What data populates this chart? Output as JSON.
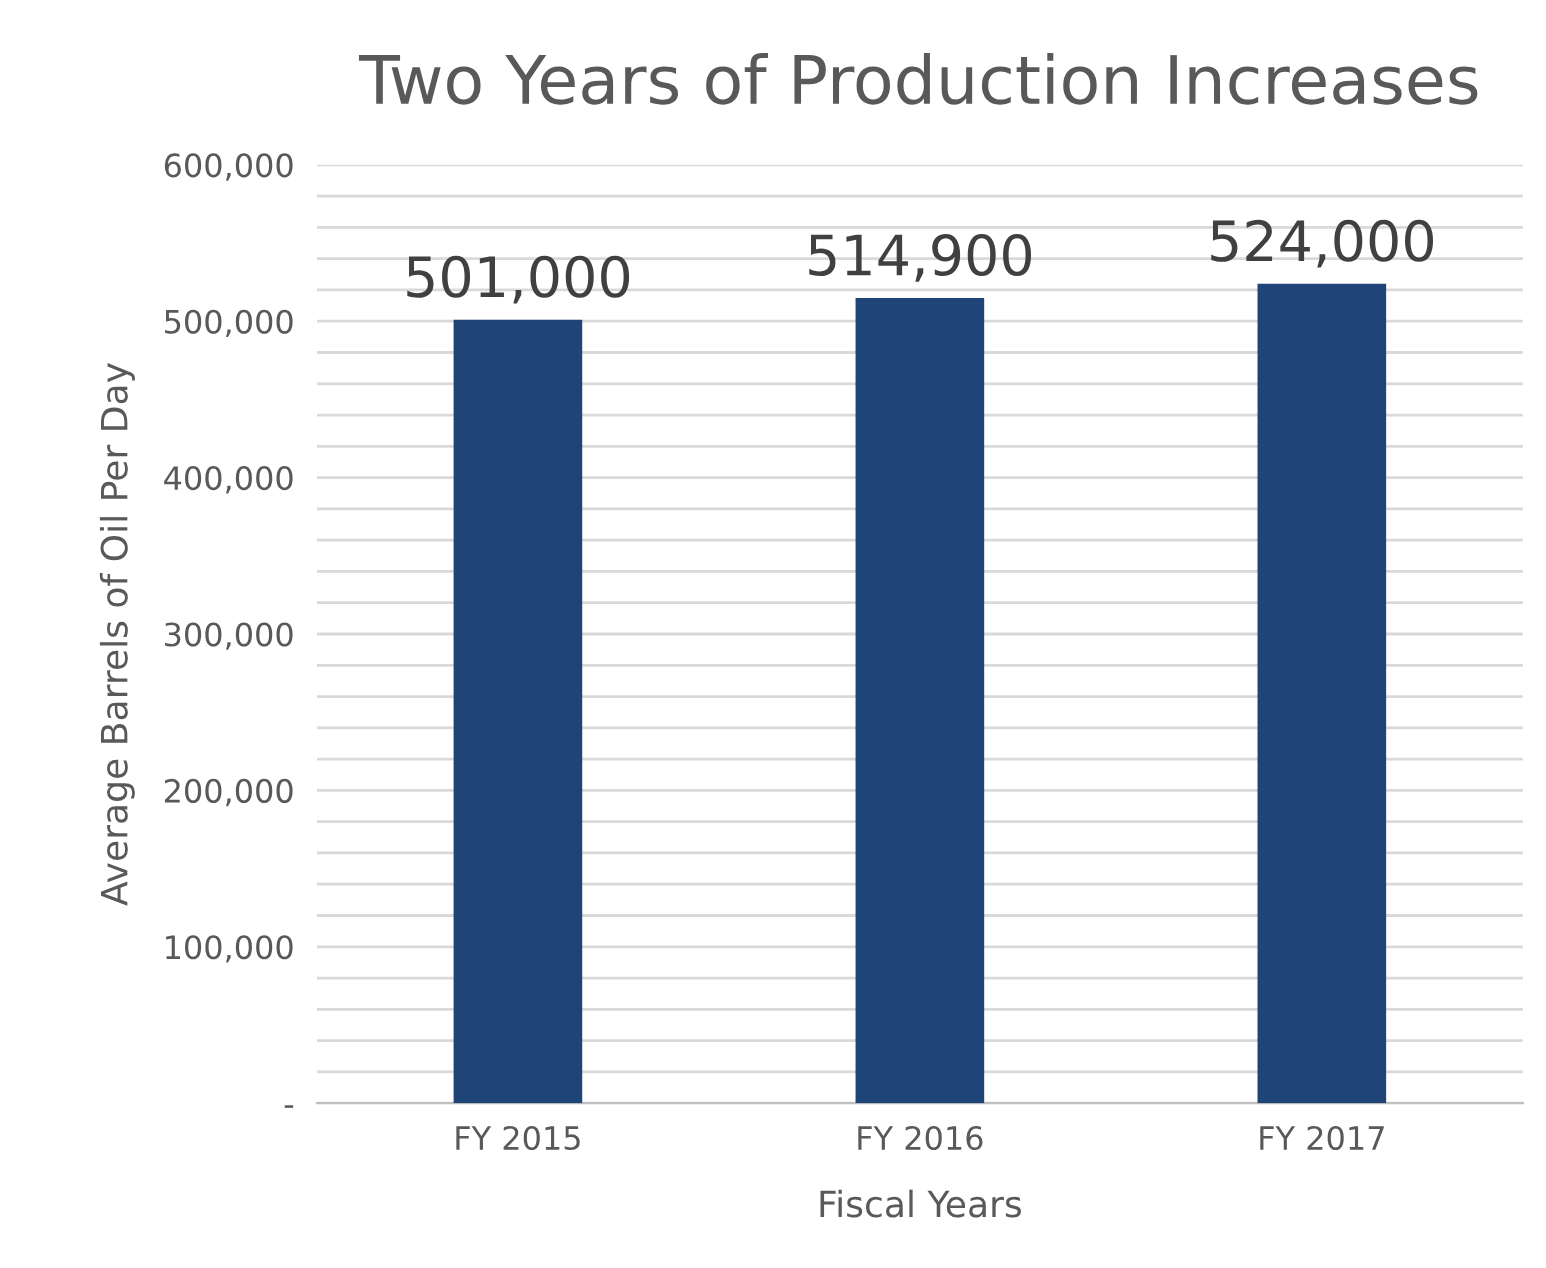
{
  "chart_data": {
    "type": "bar",
    "title": "Two Years of Production Increases",
    "xlabel": "Fiscal Years",
    "ylabel": "Average Barrels of Oil Per Day",
    "categories": [
      "FY 2015",
      "FY 2016",
      "FY 2017"
    ],
    "values": [
      501000,
      514900,
      524000
    ],
    "value_labels": [
      "501,000",
      "514,900",
      "524,000"
    ],
    "color": "#1f4478",
    "ylim": [
      0,
      600000
    ],
    "yticks": [
      {
        "value": 0,
        "label": "-"
      },
      {
        "value": 20000,
        "label": null
      },
      {
        "value": 40000,
        "label": null
      },
      {
        "value": 60000,
        "label": null
      },
      {
        "value": 80000,
        "label": null
      },
      {
        "value": 100000,
        "label": "100,000"
      },
      {
        "value": 120000,
        "label": null
      },
      {
        "value": 140000,
        "label": null
      },
      {
        "value": 160000,
        "label": null
      },
      {
        "value": 180000,
        "label": null
      },
      {
        "value": 200000,
        "label": "200,000"
      },
      {
        "value": 220000,
        "label": null
      },
      {
        "value": 240000,
        "label": null
      },
      {
        "value": 260000,
        "label": null
      },
      {
        "value": 280000,
        "label": null
      },
      {
        "value": 300000,
        "label": "300,000"
      },
      {
        "value": 320000,
        "label": null
      },
      {
        "value": 340000,
        "label": null
      },
      {
        "value": 360000,
        "label": null
      },
      {
        "value": 380000,
        "label": null
      },
      {
        "value": 400000,
        "label": "400,000"
      },
      {
        "value": 420000,
        "label": null
      },
      {
        "value": 440000,
        "label": null
      },
      {
        "value": 460000,
        "label": null
      },
      {
        "value": 480000,
        "label": null
      },
      {
        "value": 500000,
        "label": "500,000"
      },
      {
        "value": 520000,
        "label": null
      },
      {
        "value": 540000,
        "label": null
      },
      {
        "value": 560000,
        "label": null
      },
      {
        "value": 580000,
        "label": null
      },
      {
        "value": 600000,
        "label": "600,000"
      }
    ],
    "grid": "y"
  }
}
